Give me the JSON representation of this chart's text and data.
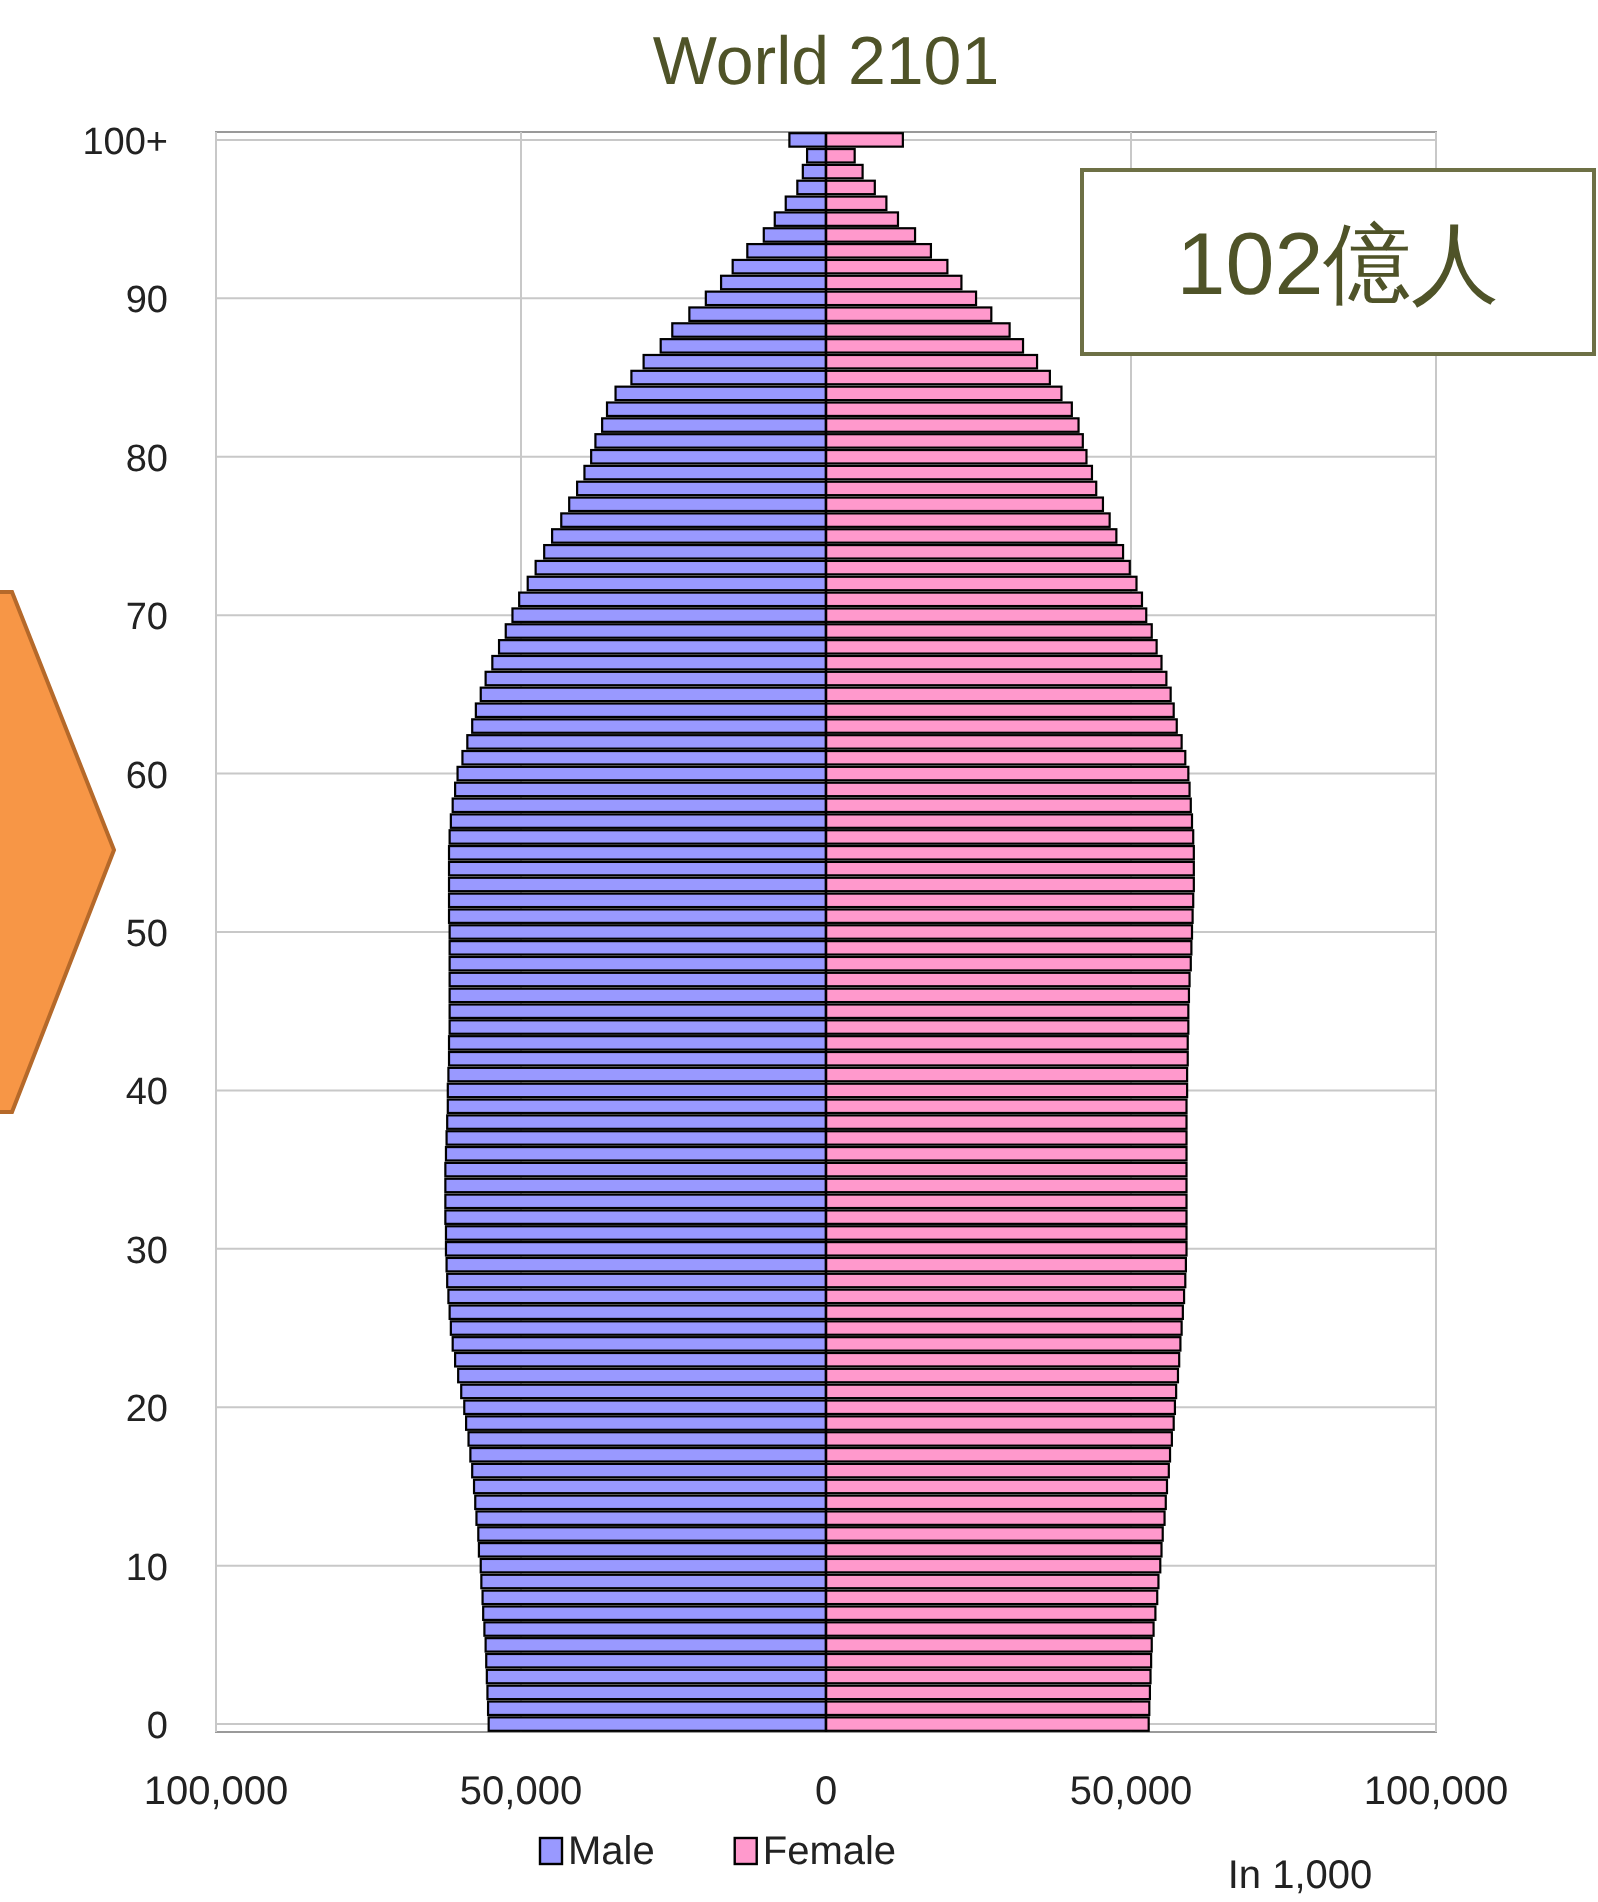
{
  "chart_data": {
    "type": "bar",
    "orientation": "horizontal",
    "stacked": true,
    "title": "World 2101",
    "categories": [
      "100+",
      null,
      null,
      null,
      null,
      null,
      null,
      null,
      null,
      null,
      "90",
      null,
      null,
      null,
      null,
      null,
      null,
      null,
      null,
      null,
      "80",
      null,
      null,
      null,
      null,
      null,
      null,
      null,
      null,
      null,
      "70",
      null,
      null,
      null,
      null,
      null,
      null,
      null,
      null,
      null,
      "60",
      null,
      null,
      null,
      null,
      null,
      null,
      null,
      null,
      null,
      "50",
      null,
      null,
      null,
      null,
      null,
      null,
      null,
      null,
      null,
      "40",
      null,
      null,
      null,
      null,
      null,
      null,
      null,
      null,
      null,
      "30",
      null,
      null,
      null,
      null,
      null,
      null,
      null,
      null,
      null,
      "20",
      null,
      null,
      null,
      null,
      null,
      null,
      null,
      null,
      null,
      "10",
      null,
      null,
      null,
      null,
      null,
      null,
      null,
      null,
      null,
      "0"
    ],
    "series": [
      {
        "name": "Male",
        "color": "#9999ff",
        "values": [
          -6000,
          -3100,
          -3800,
          -4700,
          -6600,
          -8400,
          -10200,
          -12900,
          -15300,
          -17200,
          -19700,
          -22400,
          -25200,
          -27100,
          -29900,
          -31900,
          -34500,
          -35900,
          -36700,
          -37800,
          -38500,
          -39600,
          -40800,
          -42100,
          -43400,
          -44900,
          -46200,
          -47600,
          -48900,
          -50300,
          -51400,
          -52500,
          -53600,
          -54700,
          -55800,
          -56600,
          -57400,
          -58000,
          -58800,
          -59600,
          -60400,
          -60800,
          -61200,
          -61500,
          -61700,
          -61800,
          -61800,
          -61800,
          -61800,
          -61800,
          -61700,
          -61700,
          -61700,
          -61700,
          -61700,
          -61700,
          -61700,
          -61800,
          -61800,
          -61900,
          -62000,
          -62000,
          -62100,
          -62200,
          -62300,
          -62400,
          -62400,
          -62400,
          -62400,
          -62300,
          -62300,
          -62200,
          -62100,
          -61900,
          -61700,
          -61500,
          -61200,
          -60800,
          -60300,
          -59800,
          -59300,
          -59000,
          -58600,
          -58300,
          -58000,
          -57700,
          -57500,
          -57300,
          -57000,
          -56900,
          -56600,
          -56500,
          -56300,
          -56200,
          -56000,
          -55800,
          -55700,
          -55600,
          -55500,
          -55400,
          -55300
        ]
      },
      {
        "name": "Female",
        "color": "#ff99cc",
        "values": [
          12600,
          4700,
          6000,
          8000,
          9900,
          11800,
          14600,
          17200,
          19900,
          22200,
          24600,
          27100,
          30100,
          32300,
          34600,
          36700,
          38600,
          40300,
          41400,
          42100,
          42700,
          43600,
          44300,
          45400,
          46500,
          47600,
          48700,
          49800,
          50900,
          51800,
          52500,
          53400,
          54200,
          55000,
          55800,
          56500,
          57000,
          57500,
          58300,
          58900,
          59400,
          59600,
          59800,
          60000,
          60200,
          60300,
          60300,
          60300,
          60200,
          60100,
          60000,
          59900,
          59800,
          59600,
          59500,
          59400,
          59400,
          59300,
          59300,
          59200,
          59200,
          59100,
          59100,
          59100,
          59100,
          59100,
          59100,
          59100,
          59100,
          59100,
          59100,
          59000,
          58900,
          58700,
          58500,
          58300,
          58100,
          57900,
          57700,
          57400,
          57200,
          57000,
          56700,
          56400,
          56200,
          55900,
          55700,
          55500,
          55200,
          55000,
          54800,
          54500,
          54300,
          54000,
          53700,
          53400,
          53300,
          53200,
          53100,
          53000,
          52900
        ]
      }
    ],
    "xlim": [
      -100000,
      100000
    ],
    "xticks": [
      {
        "value": -100000,
        "label": "100,000"
      },
      {
        "value": -50000,
        "label": "50,000"
      },
      0,
      {
        "value": 50000,
        "label": "50,000"
      },
      {
        "value": 100000,
        "label": "100,000"
      }
    ],
    "grid": true,
    "legend": "bottom",
    "annotations": [
      "102億人",
      "In 1,000"
    ]
  }
}
